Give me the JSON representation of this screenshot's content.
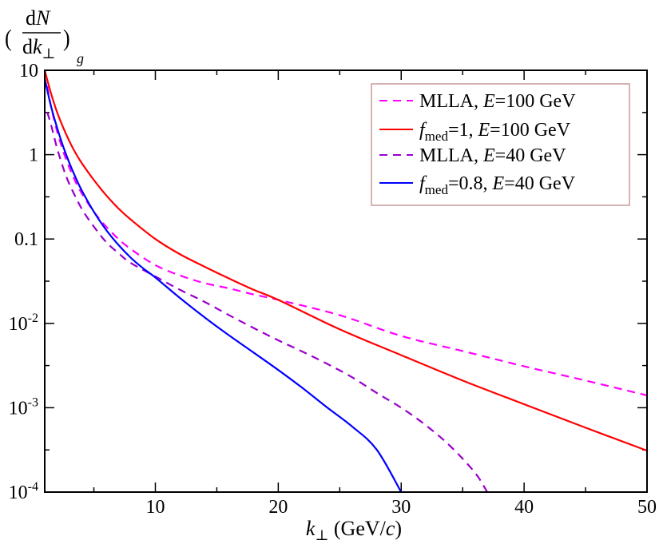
{
  "chart_data": {
    "type": "line",
    "title": "",
    "ylabel": {
      "open": "(",
      "num_pre": "d",
      "num_var": "N",
      "den_pre": "d",
      "den_var": "k",
      "den_sub": "⊥",
      "close": ")",
      "sub": "g"
    },
    "xlabel": {
      "var": "k",
      "sub": "⊥",
      "unit_pre": " (GeV/",
      "unit_var": "c",
      "unit_post": ")"
    },
    "xlim": [
      1,
      50
    ],
    "ylim": [
      0.0001,
      10
    ],
    "yscale": "log",
    "xticks": [
      10,
      20,
      30,
      40,
      50
    ],
    "xtick_labels": [
      "10",
      "20",
      "30",
      "40",
      "50"
    ],
    "yticks": [
      {
        "value": 10,
        "base": "10",
        "exp": ""
      },
      {
        "value": 1,
        "base": "1",
        "exp": ""
      },
      {
        "value": 0.1,
        "base": "0.1",
        "exp": ""
      },
      {
        "value": 0.01,
        "base": "10",
        "exp": "-2"
      },
      {
        "value": 0.001,
        "base": "10",
        "exp": "-3"
      },
      {
        "value": 0.0001,
        "base": "10",
        "exp": "-4"
      }
    ],
    "legend_position": "top-right",
    "series": [
      {
        "name": "MLLA, E=100 GeV",
        "legend": {
          "pre": "MLLA, ",
          "var": "E",
          "sub": "",
          "post": "=100 GeV"
        },
        "color": "#ff00ff",
        "dash": true,
        "x": [
          1.2,
          1.5,
          2,
          2.5,
          3,
          3.5,
          4,
          5,
          6,
          7,
          8,
          10,
          12,
          14,
          16,
          18,
          20,
          25,
          30,
          35,
          40,
          45,
          50
        ],
        "y": [
          6.5,
          3.8,
          1.9,
          1.1,
          0.7,
          0.48,
          0.35,
          0.21,
          0.14,
          0.1,
          0.076,
          0.049,
          0.037,
          0.03,
          0.026,
          0.022,
          0.019,
          0.0125,
          0.0071,
          0.0047,
          0.0031,
          0.0021,
          0.0014
        ]
      },
      {
        "name": "f_med=1, E=100 GeV",
        "legend": {
          "pre": "",
          "var": "f",
          "sub": "med",
          "post": "=1, ",
          "var2": "E",
          "post2": "=100 GeV"
        },
        "color": "#ff0000",
        "dash": false,
        "x": [
          1,
          1.5,
          2,
          2.5,
          3,
          3.5,
          4,
          5,
          6,
          7,
          8,
          10,
          12,
          14,
          16,
          18,
          20,
          25,
          30,
          35,
          40,
          45,
          50
        ],
        "y": [
          10,
          5.4,
          3.2,
          2.1,
          1.45,
          1.05,
          0.8,
          0.5,
          0.33,
          0.23,
          0.17,
          0.1,
          0.066,
          0.047,
          0.034,
          0.025,
          0.019,
          0.0085,
          0.0042,
          0.0021,
          0.0011,
          0.00058,
          0.00031
        ]
      },
      {
        "name": "MLLA, E=40 GeV",
        "legend": {
          "pre": "MLLA, ",
          "var": "E",
          "sub": "",
          "post": "=40 GeV"
        },
        "color": "#9900cc",
        "dash": true,
        "x": [
          1.2,
          1.5,
          2,
          2.5,
          3,
          4,
          5,
          6,
          7,
          8,
          10,
          12,
          14,
          16,
          18,
          20,
          22,
          24,
          26,
          28,
          30,
          32,
          34,
          36,
          37
        ],
        "y": [
          3.2,
          2.3,
          1.2,
          0.7,
          0.45,
          0.23,
          0.14,
          0.092,
          0.068,
          0.052,
          0.036,
          0.025,
          0.018,
          0.0125,
          0.0088,
          0.0063,
          0.0046,
          0.0033,
          0.0023,
          0.0015,
          0.001,
          0.00062,
          0.00035,
          0.00017,
          0.0001
        ]
      },
      {
        "name": "f_med=0.8, E=40 GeV",
        "legend": {
          "pre": "",
          "var": "f",
          "sub": "med",
          "post": "=0.8, ",
          "var2": "E",
          "post2": "=40 GeV"
        },
        "color": "#0000ff",
        "dash": false,
        "x": [
          1,
          1.5,
          2,
          2.5,
          3,
          3.5,
          4,
          5,
          6,
          7,
          8,
          9,
          10,
          12,
          14,
          16,
          18,
          20,
          22,
          24,
          26,
          28,
          30
        ],
        "y": [
          8,
          3.8,
          2.1,
          1.25,
          0.8,
          0.54,
          0.38,
          0.21,
          0.128,
          0.085,
          0.06,
          0.045,
          0.035,
          0.02,
          0.0118,
          0.0072,
          0.0045,
          0.0028,
          0.0017,
          0.001,
          0.0006,
          0.00032,
          0.0001
        ]
      }
    ]
  }
}
